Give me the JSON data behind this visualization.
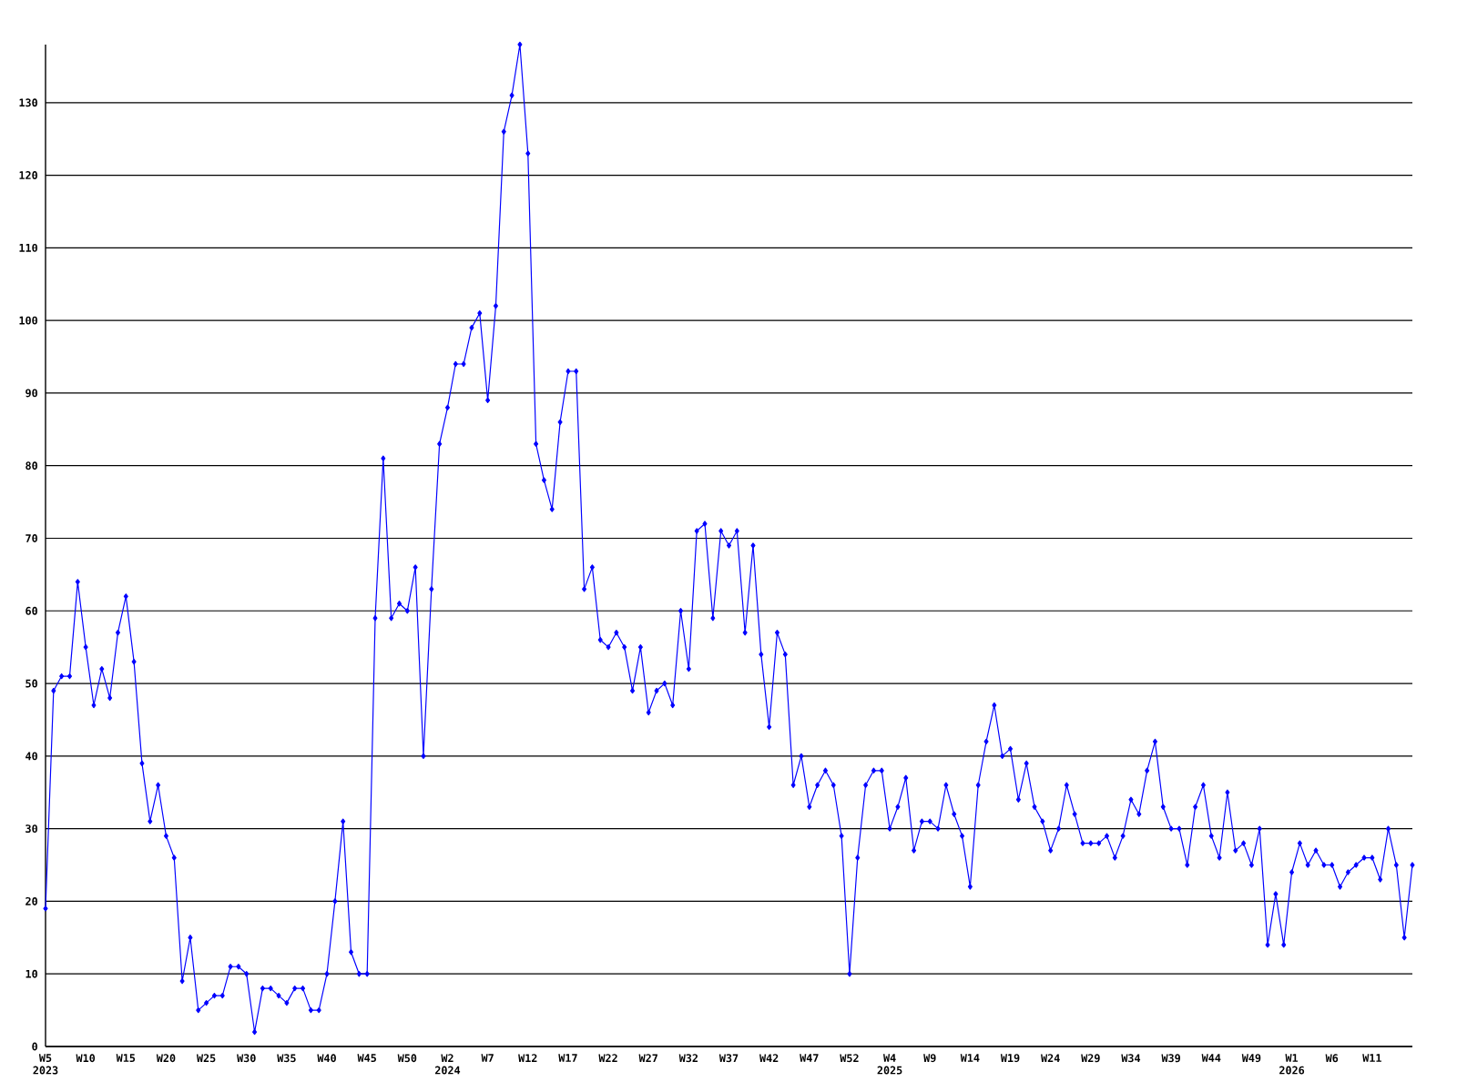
{
  "chart_data": {
    "type": "line",
    "color": "#0000ff",
    "marker": "diamond",
    "line_style": "solid",
    "grid": "y",
    "ylim": [
      0,
      138
    ],
    "yticks": [
      0,
      10,
      20,
      30,
      40,
      50,
      60,
      70,
      80,
      90,
      100,
      110,
      120,
      130
    ],
    "categories": [
      "W5",
      null,
      null,
      null,
      null,
      "W10",
      null,
      null,
      null,
      null,
      "W15",
      null,
      null,
      null,
      null,
      "W20",
      null,
      null,
      null,
      null,
      "W25",
      null,
      null,
      null,
      null,
      "W30",
      null,
      null,
      null,
      null,
      "W35",
      null,
      null,
      null,
      null,
      "W40",
      null,
      null,
      null,
      null,
      "W45",
      null,
      null,
      null,
      null,
      "W50",
      null,
      null,
      null,
      null,
      "W2",
      null,
      null,
      null,
      null,
      "W7",
      null,
      null,
      null,
      null,
      "W12",
      null,
      null,
      null,
      null,
      "W17",
      null,
      null,
      null,
      null,
      "W22",
      null,
      null,
      null,
      null,
      "W27",
      null,
      null,
      null,
      null,
      "W32",
      null,
      null,
      null,
      null,
      "W37",
      null,
      null,
      null,
      null,
      "W42",
      null,
      null,
      null,
      null,
      "W47",
      null,
      null,
      null,
      null,
      "W52",
      null,
      null,
      null,
      null,
      "W4",
      null,
      null,
      null,
      null,
      "W9",
      null,
      null,
      null,
      null,
      "W14",
      null,
      null,
      null,
      null,
      "W19",
      null,
      null,
      null,
      null,
      "W24",
      null,
      null,
      null,
      null,
      "W29",
      null,
      null,
      null,
      null,
      "W34",
      null,
      null,
      null,
      null,
      "W39",
      null,
      null,
      null,
      null,
      "W44",
      null,
      null,
      null,
      null,
      "W49",
      null,
      null,
      null,
      null,
      "W1",
      null,
      null,
      null,
      null,
      "W6",
      null,
      null,
      null,
      null,
      "W11",
      null,
      null,
      null,
      null,
      null
    ],
    "values": [
      19,
      49,
      51,
      51,
      64,
      55,
      47,
      52,
      48,
      57,
      62,
      53,
      39,
      31,
      36,
      29,
      26,
      9,
      15,
      5,
      6,
      7,
      7,
      11,
      11,
      10,
      2,
      8,
      8,
      7,
      6,
      8,
      8,
      5,
      5,
      10,
      20,
      31,
      13,
      10,
      10,
      59,
      81,
      59,
      61,
      60,
      66,
      40,
      63,
      83,
      88,
      94,
      94,
      99,
      101,
      89,
      102,
      126,
      131,
      138,
      123,
      83,
      78,
      74,
      86,
      93,
      93,
      63,
      66,
      56,
      55,
      57,
      55,
      49,
      55,
      46,
      49,
      50,
      47,
      60,
      52,
      71,
      72,
      59,
      71,
      69,
      71,
      57,
      69,
      54,
      44,
      57,
      54,
      36,
      40,
      33,
      36,
      38,
      36,
      29,
      10,
      26,
      36,
      38,
      38,
      30,
      33,
      37,
      27,
      31,
      31,
      30,
      36,
      32,
      29,
      22,
      36,
      42,
      47,
      40,
      41,
      34,
      39,
      33,
      31,
      27,
      30,
      36,
      32,
      28,
      28,
      28,
      29,
      26,
      29,
      34,
      32,
      38,
      42,
      33,
      30,
      30,
      25,
      33,
      36,
      29,
      26,
      35,
      27,
      28,
      25,
      30,
      14,
      21,
      14,
      24,
      28,
      25,
      27,
      25,
      25,
      22,
      24,
      25,
      26,
      26,
      23,
      30,
      25,
      15,
      25
    ],
    "annotations": [
      "2023",
      "2024",
      "2025",
      "2026"
    ]
  }
}
